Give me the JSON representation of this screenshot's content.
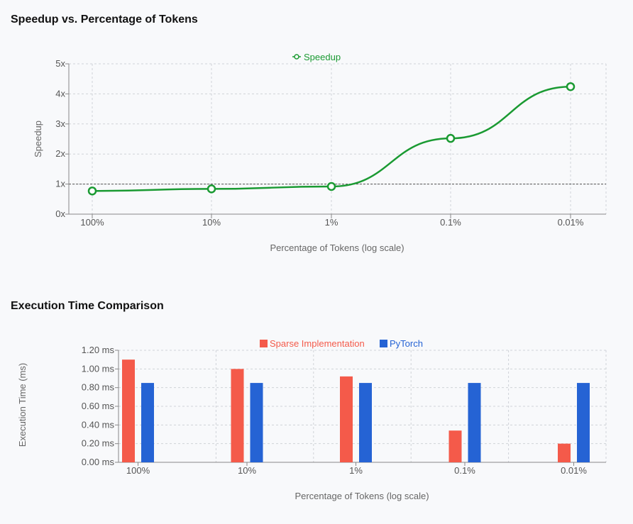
{
  "colors": {
    "speedup": "#1a9a32",
    "sparse": "#f45a4a",
    "pytorch": "#2563d4",
    "grid": "#cfd3d8",
    "axis": "#888888"
  },
  "chart_data": [
    {
      "type": "line",
      "title": "Speedup vs. Percentage of Tokens",
      "xlabel": "Percentage of Tokens (log scale)",
      "ylabel": "Speedup",
      "categories": [
        "100%",
        "10%",
        "1%",
        "0.1%",
        "0.01%"
      ],
      "series": [
        {
          "name": "Speedup",
          "values": [
            0.77,
            0.84,
            0.92,
            2.52,
            4.24
          ]
        }
      ],
      "y_ticks": [
        "0x",
        "1x",
        "2x",
        "3x",
        "4x",
        "5x"
      ],
      "ylim": [
        0,
        5
      ],
      "reference_line": 1,
      "grid": true,
      "legend": "top-center"
    },
    {
      "type": "bar",
      "title": "Execution Time Comparison",
      "xlabel": "Percentage of Tokens (log scale)",
      "ylabel": "Execution Time (ms)",
      "categories": [
        "100%",
        "10%",
        "1%",
        "0.1%",
        "0.01%"
      ],
      "series": [
        {
          "name": "Sparse Implementation",
          "values": [
            1.1,
            1.0,
            0.92,
            0.34,
            0.2
          ]
        },
        {
          "name": "PyTorch",
          "values": [
            0.85,
            0.85,
            0.85,
            0.85,
            0.85
          ]
        }
      ],
      "y_ticks": [
        "0.00 ms",
        "0.20 ms",
        "0.40 ms",
        "0.60 ms",
        "0.80 ms",
        "1.00 ms",
        "1.20 ms"
      ],
      "ylim": [
        0,
        1.2
      ],
      "grid": true,
      "legend": "top-center"
    }
  ]
}
